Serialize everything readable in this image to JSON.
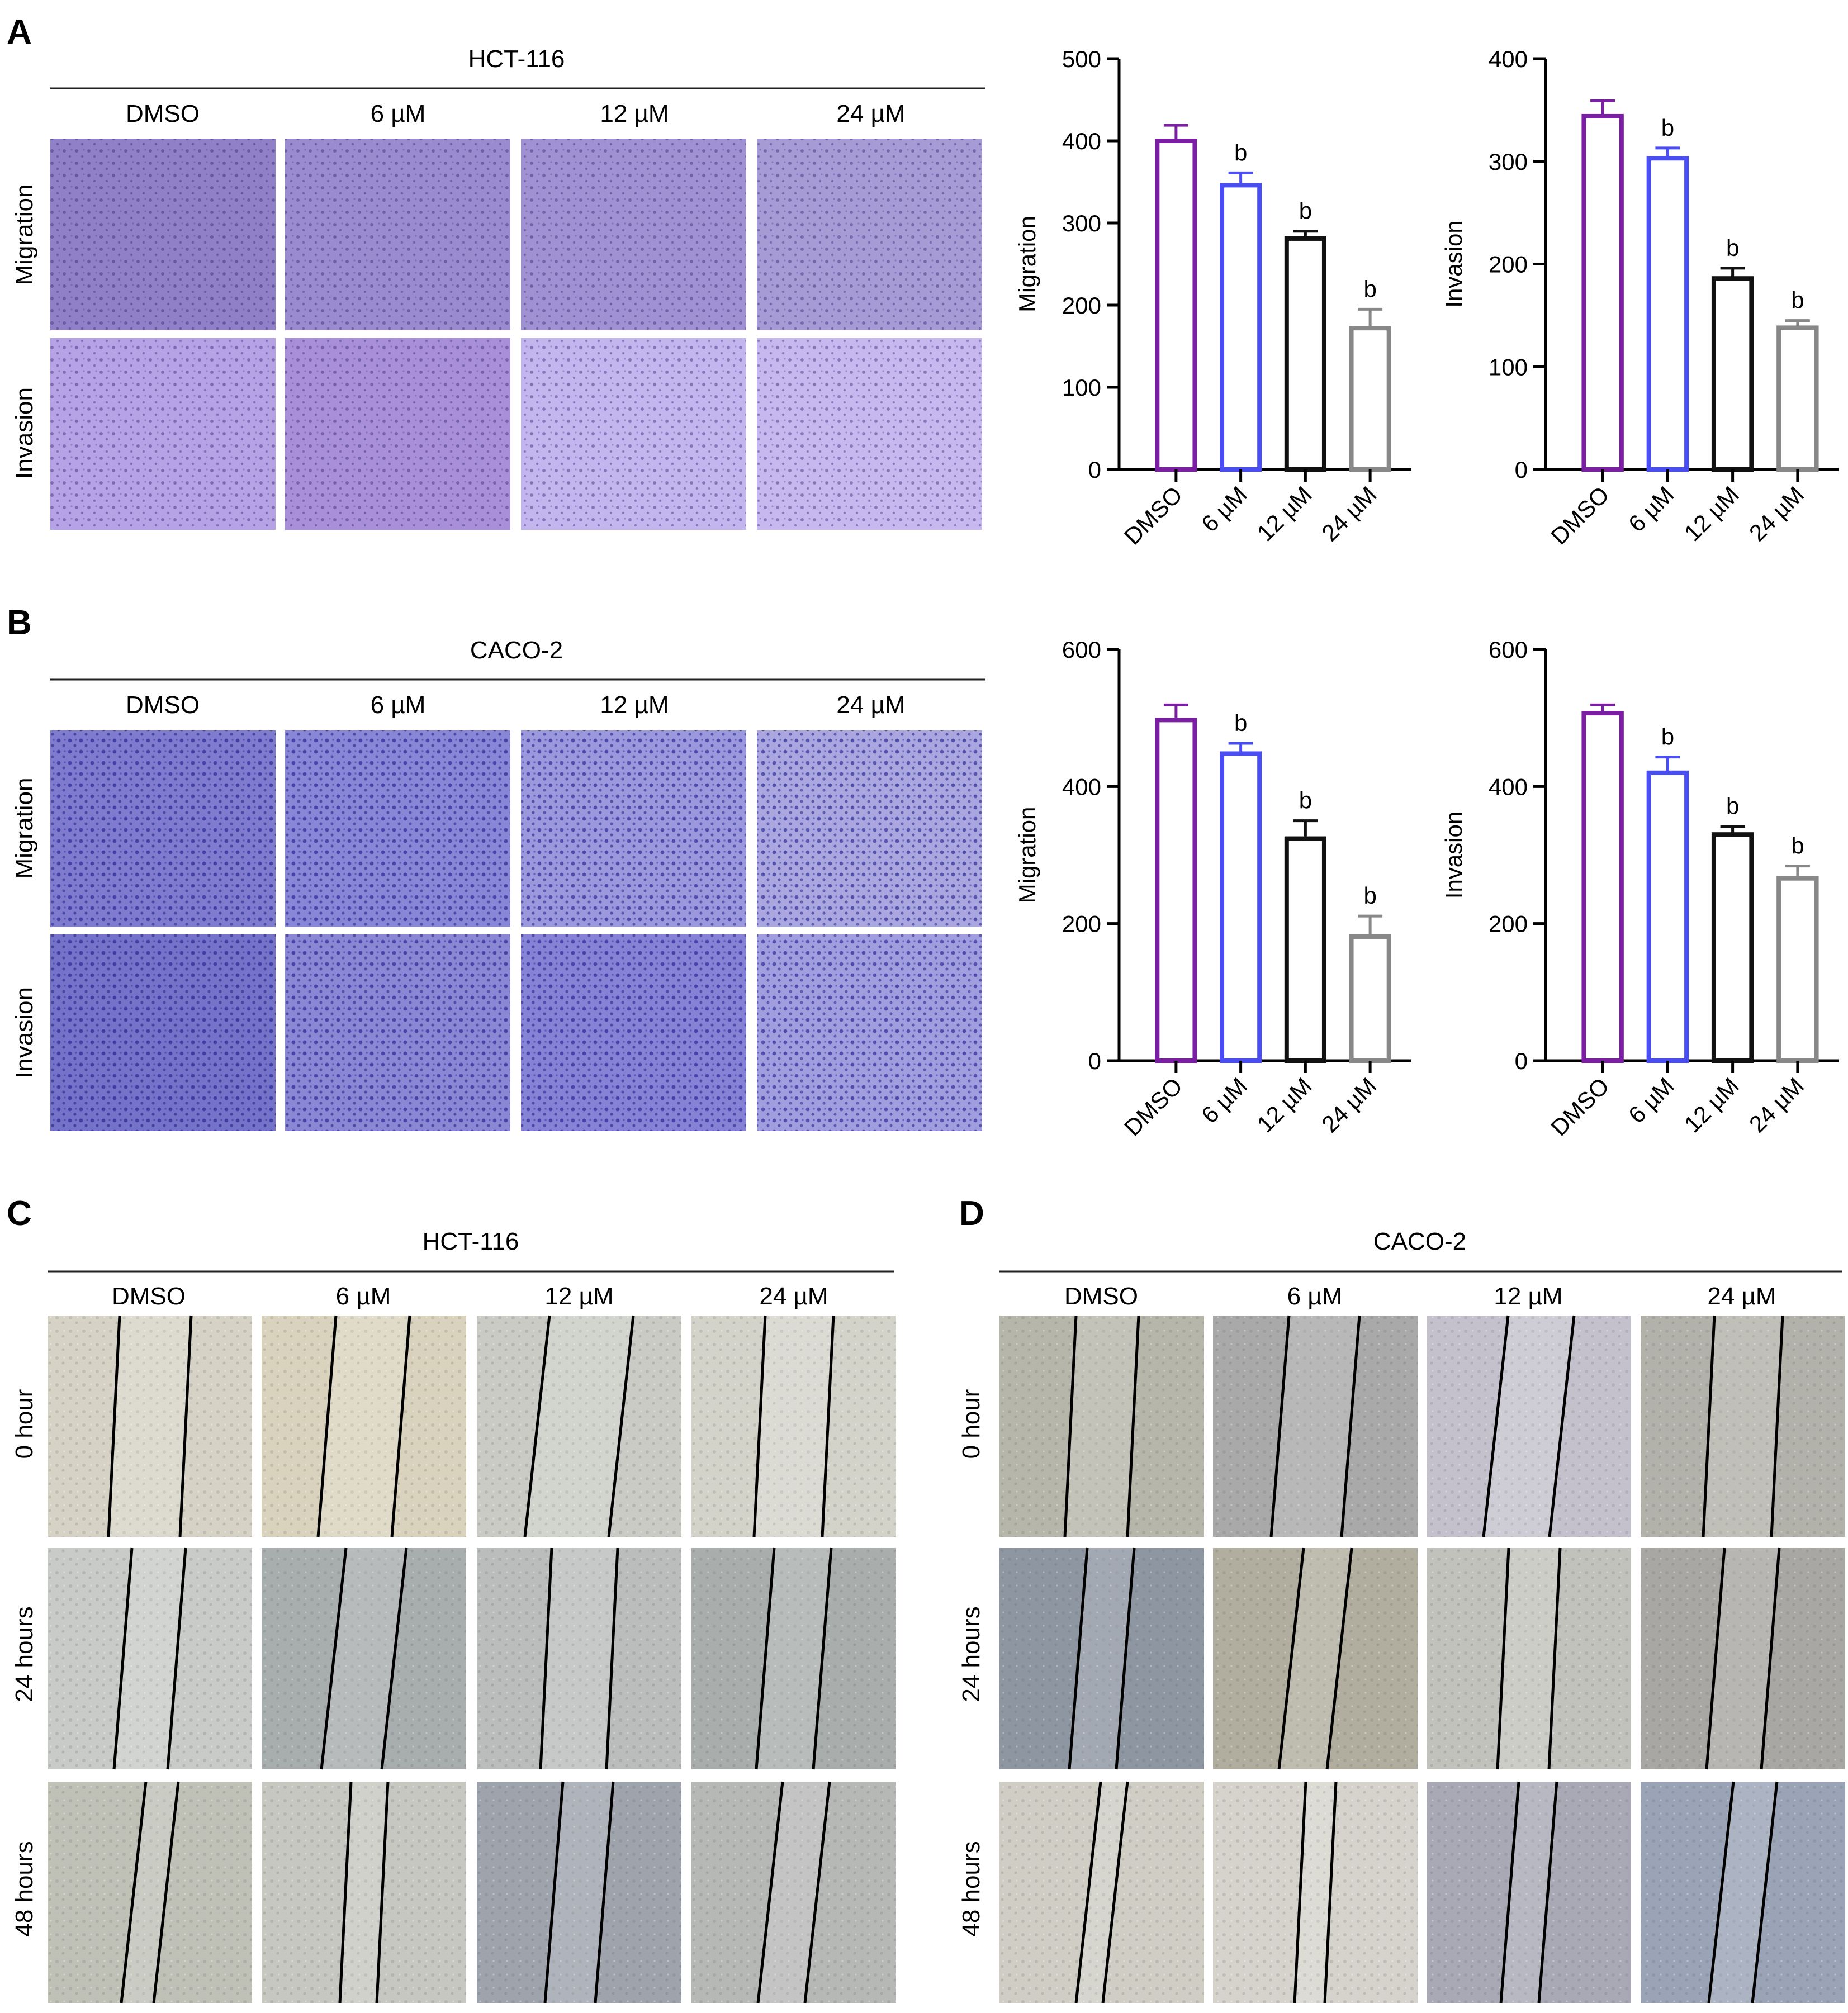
{
  "figure": {
    "panels": {
      "A": {
        "letter": "A",
        "cell_line": "HCT-116",
        "columns": [
          "DMSO",
          "6 µM",
          "12 µM",
          "24 µM"
        ],
        "rows": [
          "Migration",
          "Invasion"
        ],
        "image_tones": [
          [
            "#8f80c7",
            "#9a8bcf",
            "#a092d2",
            "#a79bd6"
          ],
          [
            "#b5a3e6",
            "#a98fd9",
            "#c3b5ee",
            "#c7b9ef"
          ]
        ]
      },
      "B": {
        "letter": "B",
        "cell_line": "CACO-2",
        "columns": [
          "DMSO",
          "6 µM",
          "12 µM",
          "24 µM"
        ],
        "rows": [
          "Migration",
          "Invasion"
        ],
        "image_tones": [
          [
            "#7f7ccf",
            "#8886d6",
            "#9b98dd",
            "#aaa7e0"
          ],
          [
            "#7572c9",
            "#8a87d4",
            "#8683d6",
            "#a19ee0"
          ]
        ]
      },
      "C": {
        "letter": "C",
        "cell_line": "HCT-116",
        "columns": [
          "DMSO",
          "6 µM",
          "12 µM",
          "24 µM"
        ],
        "rows": [
          "0 hour",
          "24 hours",
          "48 hours"
        ],
        "image_tones": [
          [
            "#d6d3c6",
            "#d9d2bc",
            "#c9cbc4",
            "#d3d3ca"
          ],
          [
            "#c8cbc8",
            "#a8adae",
            "#babdbb",
            "#a9aead"
          ],
          [
            "#bfc0b6",
            "#c6c7c0",
            "#9ea3ac",
            "#b6b8b6"
          ]
        ]
      },
      "D": {
        "letter": "D",
        "cell_line": "CACO-2",
        "columns": [
          "DMSO",
          "6 µM",
          "12 µM",
          "24 µM"
        ],
        "rows": [
          "0 hour",
          "24 hours",
          "48 hours"
        ],
        "image_tones": [
          [
            "#b7b6aa",
            "#a8a9a8",
            "#c4c1cc",
            "#b3b2aa"
          ],
          [
            "#8e96a2",
            "#b1ae9f",
            "#c2c2bc",
            "#a8a7a3"
          ],
          [
            "#cfcdc4",
            "#d5d3cb",
            "#a8a9b5",
            "#9aa4b6"
          ]
        ]
      }
    }
  },
  "chart_data": [
    {
      "type": "bar",
      "panel": "A",
      "categories": [
        "DMSO",
        "6 µM",
        "12 µM",
        "24 µM"
      ],
      "values": [
        400,
        346,
        281,
        172
      ],
      "errors": [
        19,
        15,
        9,
        23
      ],
      "significance": [
        "",
        "b",
        "b",
        "b"
      ],
      "ylabel": "Migration",
      "ylim": [
        0,
        500
      ],
      "yticks": [
        0,
        100,
        200,
        300,
        400,
        500
      ],
      "colors": [
        "#7a1fa2",
        "#4a4ef0",
        "#111111",
        "#888888"
      ]
    },
    {
      "type": "bar",
      "panel": "A",
      "categories": [
        "DMSO",
        "6 µM",
        "12 µM",
        "24 µM"
      ],
      "values": [
        344,
        303,
        186,
        138
      ],
      "errors": [
        15,
        10,
        10,
        7
      ],
      "significance": [
        "",
        "b",
        "b",
        "b"
      ],
      "ylabel": "Invasion",
      "ylim": [
        0,
        400
      ],
      "yticks": [
        0,
        100,
        200,
        300,
        400
      ],
      "colors": [
        "#7a1fa2",
        "#4a4ef0",
        "#111111",
        "#888888"
      ]
    },
    {
      "type": "bar",
      "panel": "B",
      "categories": [
        "DMSO",
        "6 µM",
        "12 µM",
        "24 µM"
      ],
      "values": [
        497,
        448,
        324,
        181
      ],
      "errors": [
        22,
        15,
        26,
        30
      ],
      "significance": [
        "",
        "b",
        "b",
        "b"
      ],
      "ylabel": "Migration",
      "ylim": [
        0,
        600
      ],
      "yticks": [
        0,
        200,
        400,
        600
      ],
      "colors": [
        "#7a1fa2",
        "#4a4ef0",
        "#111111",
        "#888888"
      ]
    },
    {
      "type": "bar",
      "panel": "B",
      "categories": [
        "DMSO",
        "6 µM",
        "12 µM",
        "24 µM"
      ],
      "values": [
        507,
        420,
        330,
        266
      ],
      "errors": [
        12,
        23,
        12,
        18
      ],
      "significance": [
        "",
        "b",
        "b",
        "b"
      ],
      "ylabel": "Invasion",
      "ylim": [
        0,
        600
      ],
      "yticks": [
        0,
        200,
        400,
        600
      ],
      "colors": [
        "#7a1fa2",
        "#4a4ef0",
        "#111111",
        "#888888"
      ]
    }
  ]
}
